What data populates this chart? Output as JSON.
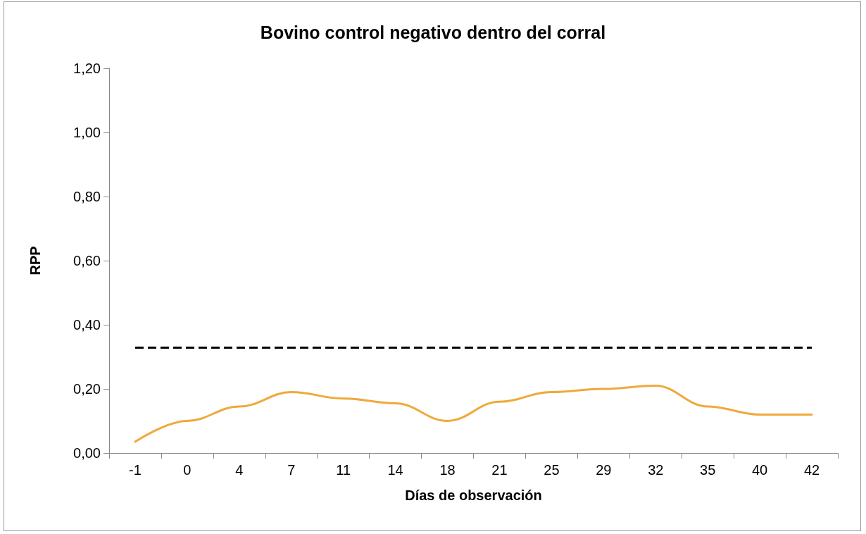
{
  "chart_data": {
    "type": "line",
    "title": "Bovino control negativo dentro del corral",
    "xlabel": "Días de observación",
    "ylabel": "RPP",
    "categories": [
      "-1",
      "0",
      "4",
      "7",
      "11",
      "14",
      "18",
      "21",
      "25",
      "29",
      "32",
      "35",
      "40",
      "42"
    ],
    "series": [
      {
        "color": "#f0a93b",
        "values": [
          0.035,
          0.1,
          0.145,
          0.19,
          0.17,
          0.155,
          0.1,
          0.16,
          0.19,
          0.2,
          0.21,
          0.145,
          0.12,
          0.12
        ]
      }
    ],
    "ylim": [
      0,
      1.2
    ],
    "yticks": [
      {
        "value": 0,
        "label": "0,00"
      },
      {
        "value": 0.2,
        "label": "0,20"
      },
      {
        "value": 0.4,
        "label": "0,40"
      },
      {
        "value": 0.6,
        "label": "0,60"
      },
      {
        "value": 0.8,
        "label": "0,80"
      },
      {
        "value": 1,
        "label": "1,00"
      },
      {
        "value": 1.2,
        "label": "1,20"
      }
    ],
    "ref_lines": [
      {
        "axis": "y",
        "value": 0.33,
        "color": "#000000",
        "line_style": "dashed"
      }
    ]
  }
}
